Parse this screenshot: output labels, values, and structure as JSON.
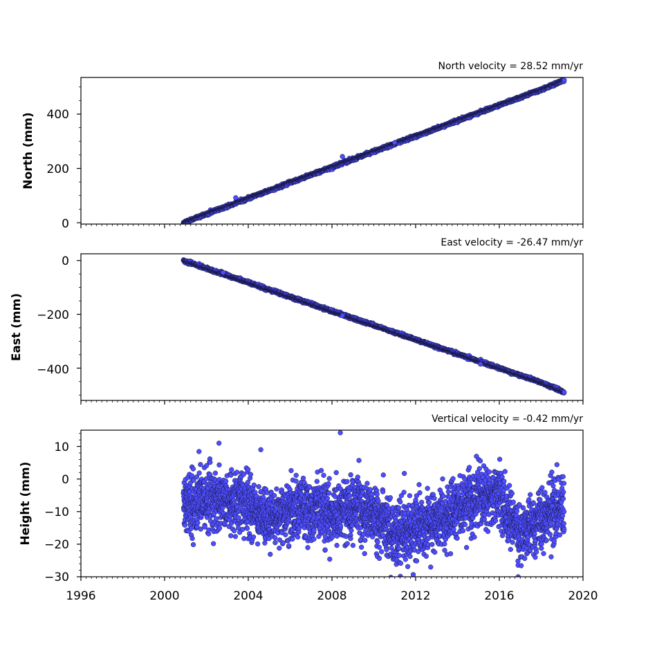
{
  "colors": {
    "marker_fill": "#4d4dff",
    "marker_edge": "#15153a",
    "axes": "#000000",
    "background": "#ffffff"
  },
  "shared_x": {
    "xlim": [
      1996,
      2020
    ],
    "ticks": [
      1996,
      2000,
      2004,
      2008,
      2012,
      2016,
      2020
    ],
    "tick_labels": [
      "1996",
      "2000",
      "2004",
      "2008",
      "2012",
      "2016",
      "2020"
    ],
    "minor_tick_step_years": 0.25
  },
  "chart_data": [
    {
      "type": "scatter",
      "title": "North velocity = 28.52 mm/yr",
      "ylabel": "North (mm)",
      "xlabel": "",
      "ylim": [
        -5,
        535
      ],
      "yticks": [
        0,
        200,
        400
      ],
      "ytick_labels": [
        "0",
        "200",
        "400"
      ],
      "yminor_step": 50,
      "grid": false,
      "series": [
        {
          "x": [
            2000.9,
            2002,
            2004,
            2006,
            2008,
            2010,
            2012,
            2014,
            2016,
            2018,
            2019.1
          ],
          "y": [
            0,
            32,
            90,
            148,
            205,
            262,
            319,
            376,
            433,
            490,
            525
          ],
          "noise_mm": 2.5,
          "outliers": [
            [
              2008.5,
              244
            ],
            [
              2003.4,
              92
            ],
            [
              2011.0,
              295
            ]
          ]
        }
      ]
    },
    {
      "type": "scatter",
      "title": "East velocity = -26.47 mm/yr",
      "ylabel": "East (mm)",
      "xlabel": "",
      "ylim": [
        -520,
        25
      ],
      "yticks": [
        0,
        -200,
        -400
      ],
      "ytick_labels": [
        "0",
        "−200",
        "−400"
      ],
      "yminor_step": 50,
      "grid": false,
      "series": [
        {
          "x": [
            2000.9,
            2002,
            2004,
            2006,
            2008,
            2010,
            2012,
            2014,
            2016,
            2018,
            2019.1
          ],
          "y": [
            0,
            -29,
            -82,
            -135,
            -188,
            -241,
            -294,
            -347,
            -400,
            -453,
            -490
          ],
          "noise_mm": 2.5,
          "outliers": [
            [
              2002.8,
              -45
            ],
            [
              2008.5,
              -205
            ],
            [
              2015.1,
              -385
            ]
          ]
        }
      ]
    },
    {
      "type": "scatter",
      "title": "Vertical velocity = -0.42 mm/yr",
      "ylabel": "Height (mm)",
      "xlabel": "",
      "ylim": [
        -30,
        15
      ],
      "yticks": [
        10,
        0,
        -10,
        -20,
        -30
      ],
      "ytick_labels": [
        "10",
        "0",
        "−10",
        "−20",
        "−30"
      ],
      "yminor_step": 2,
      "grid": false,
      "series": [
        {
          "x_start": 2000.9,
          "x_end": 2019.1,
          "trend_knots_x": [
            2000.9,
            2002,
            2003,
            2004,
            2005,
            2006,
            2007,
            2008,
            2009,
            2010,
            2011,
            2012,
            2013,
            2014,
            2015,
            2016,
            2017,
            2018,
            2019.1
          ],
          "trend_knots_y": [
            -8,
            -6,
            -7,
            -8,
            -12,
            -11,
            -9,
            -10,
            -9,
            -11,
            -17,
            -15,
            -13,
            -10,
            -6,
            -5,
            -17,
            -12,
            -9
          ],
          "noise_mm": 4.5,
          "outliers": [
            [
              2008.4,
              14.2
            ],
            [
              2016.9,
              -30
            ],
            [
              2002.6,
              11
            ],
            [
              2004.6,
              9
            ]
          ]
        }
      ]
    }
  ]
}
